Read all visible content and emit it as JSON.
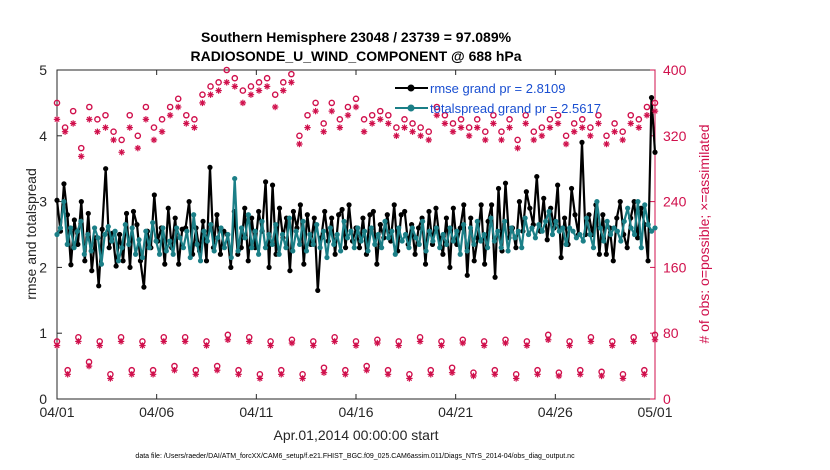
{
  "chart_data": {
    "type": "line",
    "title": "Southern Hemisphere 23048 / 23739 = 97.089%",
    "subtitle": "RADIOSONDE_U_WIND_COMPONENT @ 688 hPa",
    "xlabel": "Apr.01,2014 00:00:00 start",
    "ylabel_left": "rmse and totalspread",
    "ylabel_right": "# of obs: o=possible; ×=assimilated",
    "footer": "data file: /Users/raeder/DAI/ATM_forcXX/CAM6_setup/f.e21.FHIST_BGC.f09_025.CAM6assim.011/Diags_NTrS_2014-04/obs_diag_output.nc",
    "x_ticks": [
      "04/01",
      "04/06",
      "04/11",
      "04/16",
      "04/21",
      "04/26",
      "05/01"
    ],
    "xlim": [
      0,
      30
    ],
    "ylim_left": [
      0,
      5
    ],
    "y_ticks_left": [
      "0",
      "1",
      "2",
      "3",
      "4",
      "5"
    ],
    "ylim_right": [
      0,
      400
    ],
    "y_ticks_right": [
      "0",
      "80",
      "160",
      "240",
      "320",
      "400"
    ],
    "legend": [
      "rmse grand pr = 2.8109",
      "totalspread grand pr = 2.5617"
    ],
    "colors": {
      "rmse": "#000000",
      "spread": "#1b7f87",
      "obs": "#d0104c",
      "legend_text": "#1a4fd1"
    },
    "series": [
      {
        "name": "rmse",
        "axis": "left",
        "values": [
          3.02,
          2.55,
          3.27,
          2.8,
          2.04,
          2.72,
          2.35,
          3.0,
          2.1,
          2.82,
          1.95,
          2.45,
          1.72,
          2.58,
          3.5,
          2.3,
          2.52,
          2.02,
          2.5,
          2.1,
          2.82,
          2.0,
          2.85,
          2.65,
          2.1,
          1.7,
          2.55,
          2.3,
          3.1,
          2.4,
          2.6,
          2.05,
          2.9,
          2.3,
          2.75,
          2.05,
          2.58,
          2.6,
          3.0,
          2.2,
          2.6,
          2.25,
          2.7,
          2.1,
          3.52,
          2.3,
          2.8,
          2.2,
          2.55,
          2.5,
          2.0,
          2.85,
          2.2,
          2.3,
          2.9,
          2.1,
          2.75,
          2.3,
          2.85,
          2.55,
          3.3,
          2.0,
          3.25,
          2.2,
          2.9,
          2.45,
          2.75,
          1.95,
          2.85,
          2.6,
          2.95,
          2.05,
          2.8,
          2.35,
          2.75,
          1.65,
          2.45,
          2.85,
          2.4,
          2.75,
          2.2,
          2.8,
          2.88,
          2.3,
          2.95,
          2.4,
          2.6,
          2.3,
          2.75,
          2.2,
          2.8,
          2.85,
          2.05,
          2.65,
          2.45,
          2.8,
          2.4,
          2.95,
          2.25,
          2.8,
          2.85,
          2.35,
          2.65,
          2.2,
          2.6,
          2.75,
          2.05,
          2.85,
          2.35,
          2.9,
          2.45,
          2.2,
          2.75,
          2.0,
          2.9,
          2.35,
          2.6,
          2.95,
          1.88,
          2.75,
          2.1,
          2.45,
          2.95,
          2.05,
          2.7,
          2.95,
          1.85,
          3.2,
          2.25,
          3.28,
          2.45,
          2.6,
          2.3,
          3.0,
          2.55,
          3.15,
          2.9,
          2.65,
          3.38,
          2.55,
          3.05,
          2.42,
          2.9,
          2.6,
          3.25,
          2.15,
          2.75,
          2.35,
          3.2,
          2.8,
          2.5,
          3.9,
          2.5,
          2.8,
          2.5,
          2.95,
          2.2,
          2.8,
          2.2,
          2.6,
          2.1,
          2.75,
          3.0,
          2.5,
          2.3,
          2.75,
          3.0,
          2.45,
          2.9,
          2.65,
          2.1,
          4.58,
          3.75
        ],
        "style": "black-dot-line"
      },
      {
        "name": "totalspread",
        "axis": "left",
        "values": [
          2.5,
          2.6,
          3.0,
          2.35,
          2.6,
          2.3,
          2.55,
          2.7,
          2.2,
          2.5,
          2.25,
          2.6,
          2.45,
          2.05,
          2.5,
          2.62,
          2.4,
          2.55,
          2.1,
          2.3,
          2.65,
          2.35,
          2.6,
          2.2,
          2.42,
          2.15,
          2.55,
          2.3,
          2.68,
          2.4,
          2.2,
          2.6,
          2.25,
          2.4,
          2.2,
          2.6,
          2.45,
          2.3,
          2.55,
          2.15,
          2.8,
          2.35,
          2.1,
          2.55,
          2.4,
          2.65,
          2.25,
          2.45,
          2.6,
          2.3,
          2.5,
          2.15,
          3.35,
          2.25,
          2.6,
          2.45,
          2.8,
          2.3,
          2.55,
          2.2,
          2.7,
          2.3,
          2.5,
          2.35,
          2.65,
          2.2,
          2.5,
          2.3,
          2.75,
          2.25,
          2.55,
          2.35,
          2.7,
          2.25,
          2.5,
          2.35,
          2.65,
          2.3,
          2.55,
          2.15,
          2.6,
          2.35,
          2.5,
          2.25,
          2.7,
          2.45,
          2.55,
          2.3,
          2.6,
          2.4,
          2.55,
          2.25,
          2.6,
          2.35,
          2.5,
          2.3,
          2.7,
          2.45,
          2.55,
          2.2,
          2.6,
          2.4,
          2.5,
          2.3,
          2.6,
          2.45,
          2.35,
          2.7,
          2.25,
          2.55,
          2.4,
          2.6,
          2.3,
          2.5,
          2.35,
          2.6,
          2.4,
          2.55,
          2.2,
          2.65,
          2.25,
          2.6,
          2.35,
          2.7,
          2.4,
          2.5,
          2.3,
          2.75,
          2.4,
          2.55,
          2.3,
          2.7,
          2.25,
          2.6,
          2.45,
          2.55,
          2.3,
          2.75,
          2.5,
          2.6,
          2.45,
          2.65,
          2.55,
          2.7,
          2.85,
          2.5,
          2.7,
          2.55,
          2.6,
          2.35,
          2.6,
          2.55,
          2.45,
          2.5,
          2.4,
          2.75,
          2.5,
          2.3,
          3.0,
          2.6,
          2.4,
          2.7,
          2.5,
          2.6,
          2.55,
          2.4,
          2.7,
          2.9,
          2.6,
          2.5,
          3.0,
          2.3,
          2.95,
          2.65,
          2.55,
          2.6
        ],
        "style": "teal-dot-line"
      },
      {
        "name": "obs possible (upper)",
        "axis": "right",
        "marker": "o",
        "values": [
          360,
          330,
          350,
          305,
          355,
          340,
          345,
          325,
          315,
          345,
          320,
          355,
          330,
          340,
          355,
          365,
          345,
          340,
          370,
          380,
          385,
          400,
          390,
          375,
          380,
          385,
          390,
          370,
          385,
          395,
          320,
          345,
          360,
          335,
          360,
          340,
          355,
          365,
          340,
          345,
          350,
          345,
          330,
          340,
          335,
          330,
          325,
          355,
          345,
          335,
          340,
          330,
          340,
          325,
          345,
          325,
          340,
          315,
          345,
          325,
          330,
          340,
          345,
          320,
          335,
          340,
          330,
          345,
          320,
          335,
          325,
          345,
          340,
          355,
          360
        ],
        "style": "circle"
      },
      {
        "name": "obs assimilated (upper)",
        "axis": "right",
        "marker": "x",
        "values": [
          340,
          325,
          335,
          295,
          340,
          325,
          330,
          315,
          300,
          330,
          305,
          340,
          315,
          325,
          345,
          355,
          335,
          330,
          360,
          370,
          375,
          385,
          380,
          360,
          370,
          375,
          380,
          355,
          375,
          385,
          310,
          330,
          350,
          325,
          350,
          330,
          345,
          355,
          325,
          335,
          340,
          335,
          320,
          330,
          325,
          320,
          315,
          345,
          335,
          325,
          330,
          320,
          330,
          315,
          335,
          315,
          330,
          305,
          335,
          315,
          320,
          330,
          335,
          310,
          325,
          330,
          320,
          335,
          310,
          325,
          315,
          335,
          330,
          345,
          350
        ],
        "style": "asterisk"
      },
      {
        "name": "obs possible (lower)",
        "axis": "right",
        "marker": "o",
        "values": [
          70,
          35,
          75,
          45,
          70,
          30,
          75,
          35,
          70,
          35,
          75,
          40,
          75,
          35,
          70,
          40,
          78,
          35,
          75,
          30,
          70,
          35,
          72,
          30,
          70,
          38,
          75,
          35,
          70,
          40,
          72,
          35,
          70,
          30,
          75,
          35,
          70,
          38,
          72,
          32,
          70,
          35,
          72,
          30,
          70,
          35,
          78,
          32,
          70,
          35,
          75,
          33,
          70,
          30,
          75,
          35,
          78
        ],
        "style": "circle"
      },
      {
        "name": "obs assimilated (lower)",
        "axis": "right",
        "marker": "x",
        "values": [
          65,
          30,
          70,
          40,
          65,
          25,
          70,
          30,
          65,
          30,
          70,
          35,
          70,
          30,
          65,
          35,
          72,
          30,
          70,
          25,
          65,
          30,
          68,
          25,
          65,
          32,
          70,
          30,
          65,
          35,
          68,
          30,
          65,
          25,
          70,
          30,
          65,
          32,
          68,
          28,
          65,
          30,
          68,
          25,
          65,
          30,
          72,
          28,
          65,
          30,
          70,
          28,
          65,
          25,
          70,
          30,
          72
        ],
        "style": "asterisk"
      }
    ]
  }
}
